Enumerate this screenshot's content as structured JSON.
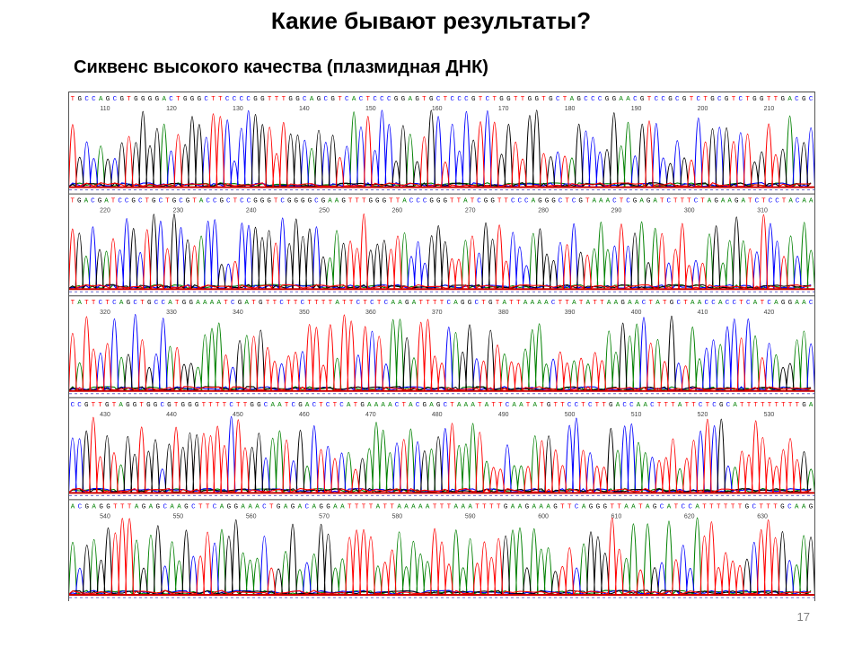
{
  "slide": {
    "title": "Какие бывают результаты?",
    "subtitle": "Сиквенс высокого качества (плазмидная ДНК)",
    "page_number": "17"
  },
  "colors": {
    "A": "#008000",
    "C": "#0000ff",
    "G": "#000000",
    "T": "#ff0000",
    "baseline": "#cc0000"
  },
  "panels": [
    {
      "sequence": "TGCCAGCGTGGGGACTGGGCTTCCCCGGTTTGGCAGCGTCACTCCCGGAGTGCTCCCGTCTGGTTGGTGCTAGCCCGGAACGTCCGCGTCTGCGTCTGGTTGACGC",
      "ticks": [
        "110",
        "120",
        "130",
        "140",
        "150",
        "160",
        "170",
        "180",
        "190",
        "200",
        "210"
      ]
    },
    {
      "sequence": "TGACGATCCGCTGCTGCGTACCGCTCCGGGTCGGGGCGAAGTTTGGGTTACCCGGGTTATCGGTTCCCAGGGCTCGTAAACTCGAGATCTTTCTAGAAGATCTCCTACAA",
      "ticks": [
        "220",
        "230",
        "240",
        "250",
        "260",
        "270",
        "280",
        "290",
        "300",
        "310"
      ]
    },
    {
      "sequence": "TATTCTCAGCTGCCATGGAAAATCGATGTTCTTCTTTTATTCTCTCAAGATTTTCAGGCTGTATTAAAACTTATATTAAGAACTATGCTAACCACCTCATCAGGAAC",
      "ticks": [
        "320",
        "330",
        "340",
        "350",
        "360",
        "370",
        "380",
        "390",
        "400",
        "410",
        "420"
      ]
    },
    {
      "sequence": "CCGTTGTAGGTGGCGTGGGTTTTCTTGGCAATCGACTCTCATGAAAACTACGAGCTAAATATTCAATATGTTCCTCTTGACCAACTTTATTCTCGCATTTTTTTTTGA",
      "ticks": [
        "430",
        "440",
        "450",
        "460",
        "470",
        "480",
        "490",
        "500",
        "510",
        "520",
        "530"
      ]
    },
    {
      "sequence": "ACGAGGTTTAGAGCAAGCTTCAGGAAACTGAGACAGGAATTTTATTAAAAATTTAAATTTTGAAGAAAGTTCAGGGTTAATAGCATCCATTTTTTGCTTTGCAAG",
      "ticks": [
        "540",
        "550",
        "560",
        "570",
        "580",
        "590",
        "600",
        "610",
        "620",
        "630"
      ]
    }
  ]
}
